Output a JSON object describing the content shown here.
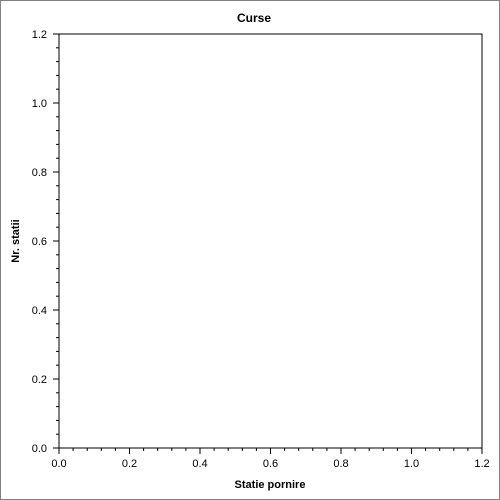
{
  "chart_data": {
    "type": "scatter",
    "title": "Curse",
    "xlabel": "Statie pornire",
    "ylabel": "Nr. statii",
    "xlim": [
      0.0,
      1.2
    ],
    "ylim": [
      0.0,
      1.2
    ],
    "x_ticks": [
      "0.0",
      "0.2",
      "0.4",
      "0.6",
      "0.8",
      "1.0",
      "1.2"
    ],
    "y_ticks": [
      "0.0",
      "0.2",
      "0.4",
      "0.6",
      "0.8",
      "1.0",
      "1.2"
    ],
    "x_tick_values": [
      0.0,
      0.2,
      0.4,
      0.6,
      0.8,
      1.0,
      1.2
    ],
    "y_tick_values": [
      0.0,
      0.2,
      0.4,
      0.6,
      0.8,
      1.0,
      1.2
    ],
    "minor_ticks_per_major": 4,
    "grid": false,
    "series": []
  },
  "colors": {
    "frame_border": "#808080",
    "axis": "#000000",
    "background": "#ffffff"
  }
}
